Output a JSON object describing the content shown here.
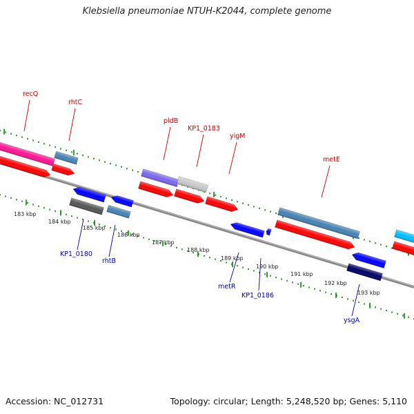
{
  "title": "Klebsiella pneumoniae NTUH-K2044, complete genome",
  "accession_label": "Accession: NC_012731",
  "summary": "Topology: circular; Length: 5,248,520 bp; Genes: 5,110",
  "colors": {
    "label_top": "#cc0000",
    "label_bottom": "#0000aa",
    "backbone": "#888888",
    "tick": "#008800",
    "cds": "#ff0000",
    "blue_gene": "#0000ff",
    "steel_gene": "#4682b4",
    "pink_gene": "#ff1493",
    "violet_gene": "#7b68ee",
    "silver_gene": "#c8c8c8",
    "dark_gene": "#555555",
    "navy_gene": "#000066",
    "cyan_gene": "#00bfff"
  },
  "scale": {
    "unit": "kbp",
    "labels": [
      "183 kbp",
      "184 kbp",
      "185 kbp",
      "186 kbp",
      "187 kbp",
      "188 kbp",
      "189 kbp",
      "190 kbp",
      "191 kbp",
      "192 kbp",
      "193 kbp"
    ]
  },
  "genes_top": [
    "recQ",
    "rhtC",
    "pldB",
    "KP1_0183",
    "yigM",
    "metE"
  ],
  "genes_bottom": [
    "KP1_0180",
    "rhtB",
    "metR",
    "KP1_0186",
    "ysgA"
  ]
}
